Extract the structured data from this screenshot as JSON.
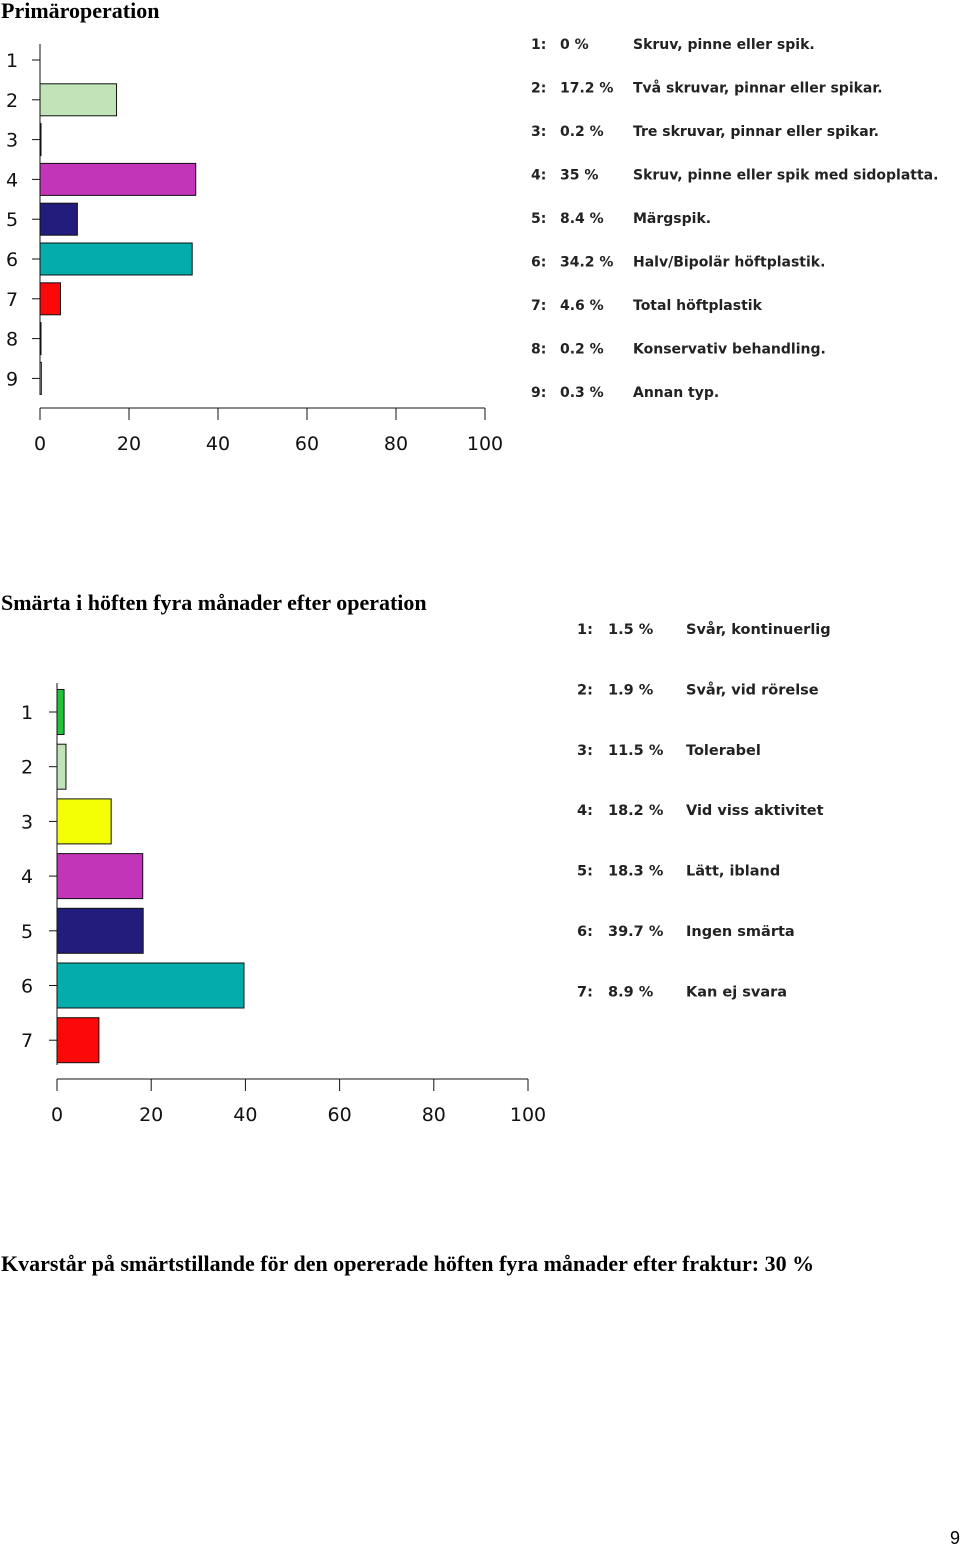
{
  "headings": {
    "chart1": "Primäroperation",
    "chart2": "Smärta i höften fyra månader efter operation",
    "statement": "Kvarstår på smärtstillande för den opererade höften fyra månader efter fraktur: 30 %"
  },
  "page_number": "9",
  "chart_data": [
    {
      "type": "bar",
      "orientation": "horizontal",
      "title": "Primäroperation",
      "categories": [
        "1",
        "2",
        "3",
        "4",
        "5",
        "6",
        "7",
        "8",
        "9"
      ],
      "values": [
        0,
        17.2,
        0.2,
        35,
        8.4,
        34.2,
        4.6,
        0.2,
        0.3
      ],
      "percent_labels": [
        "0 %",
        "17.2 %",
        "0.2 %",
        "35 %",
        "8.4 %",
        "34.2 %",
        "4.6 %",
        "0.2 %",
        "0.3 %"
      ],
      "labels": [
        "Skruv, pinne eller spik.",
        "Två skruvar, pinnar eller spikar.",
        "Tre skruvar, pinnar eller spikar.",
        "Skruv, pinne eller spik med sidoplatta.",
        "Märgspik.",
        "Halv/Bipolär höftplastik.",
        "Total höftplastik",
        "Konservativ behandling.",
        "Annan typ."
      ],
      "colors": [
        "#ffffff",
        "#c0e4b8",
        "#ffffff",
        "#c234b8",
        "#221c7c",
        "#05acac",
        "#fb0808",
        "#ffffff",
        "#ffffff"
      ],
      "xlim": [
        0,
        100
      ],
      "xticks": [
        "0",
        "20",
        "40",
        "60",
        "80",
        "100"
      ],
      "grid": false
    },
    {
      "type": "bar",
      "orientation": "horizontal",
      "title": "Smärta i höften fyra månader efter operation",
      "categories": [
        "1",
        "2",
        "3",
        "4",
        "5",
        "6",
        "7"
      ],
      "values": [
        1.5,
        1.9,
        11.5,
        18.2,
        18.3,
        39.7,
        8.9
      ],
      "percent_labels": [
        "1.5 %",
        "1.9 %",
        "11.5 %",
        "18.2 %",
        "18.3 %",
        "39.7 %",
        "8.9 %"
      ],
      "labels": [
        "Svår, kontinuerlig",
        "Svår, vid rörelse",
        "Tolerabel",
        "Vid viss aktivitet",
        "Lätt, ibland",
        "Ingen smärta",
        "Kan ej svara"
      ],
      "colors": [
        "#22c23a",
        "#c0e4b8",
        "#f4ff05",
        "#c234b8",
        "#221c7c",
        "#05acac",
        "#fb0808"
      ],
      "xlim": [
        0,
        100
      ],
      "xticks": [
        "0",
        "20",
        "40",
        "60",
        "80",
        "100"
      ],
      "grid": false
    }
  ]
}
